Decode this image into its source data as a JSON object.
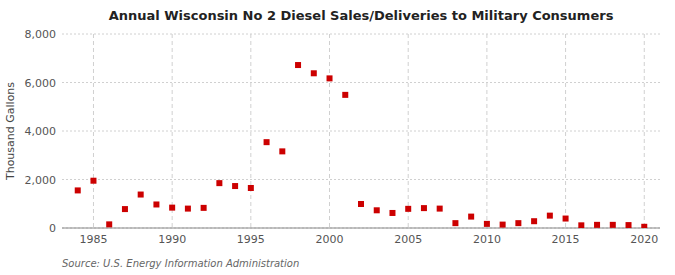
{
  "chart_data": {
    "type": "scatter",
    "title": "Annual Wisconsin No 2 Diesel Sales/Deliveries to Military Consumers",
    "ylabel": "Thousand Gallons",
    "annotations": [
      "Source: U.S. Energy Information Administration"
    ],
    "color": "#cc0000",
    "marker": "square",
    "grid": true,
    "xlim": [
      1983,
      2021
    ],
    "ylim": [
      0,
      8000
    ],
    "xticks": [
      1985,
      1990,
      1995,
      2000,
      2005,
      2010,
      2015,
      2020
    ],
    "yticks": [
      0,
      {
        "value": 2000,
        "label": "2,000"
      },
      {
        "value": 4000,
        "label": "4,000"
      },
      {
        "value": 6000,
        "label": "6,000"
      },
      {
        "value": 8000,
        "label": "8,000"
      }
    ],
    "x": [
      1984,
      1985,
      1986,
      1987,
      1988,
      1989,
      1990,
      1991,
      1992,
      1993,
      1994,
      1995,
      1996,
      1997,
      1998,
      1999,
      2000,
      2001,
      2002,
      2003,
      2004,
      2005,
      2006,
      2007,
      2008,
      2009,
      2010,
      2011,
      2012,
      2013,
      2014,
      2015,
      2016,
      2017,
      2018,
      2019,
      2020
    ],
    "values": [
      1550,
      1950,
      150,
      780,
      1380,
      970,
      840,
      800,
      830,
      1850,
      1730,
      1650,
      3540,
      3160,
      6720,
      6380,
      6170,
      5490,
      990,
      730,
      620,
      790,
      820,
      800,
      200,
      470,
      170,
      140,
      200,
      280,
      510,
      390,
      110,
      130,
      130,
      120,
      50
    ]
  }
}
